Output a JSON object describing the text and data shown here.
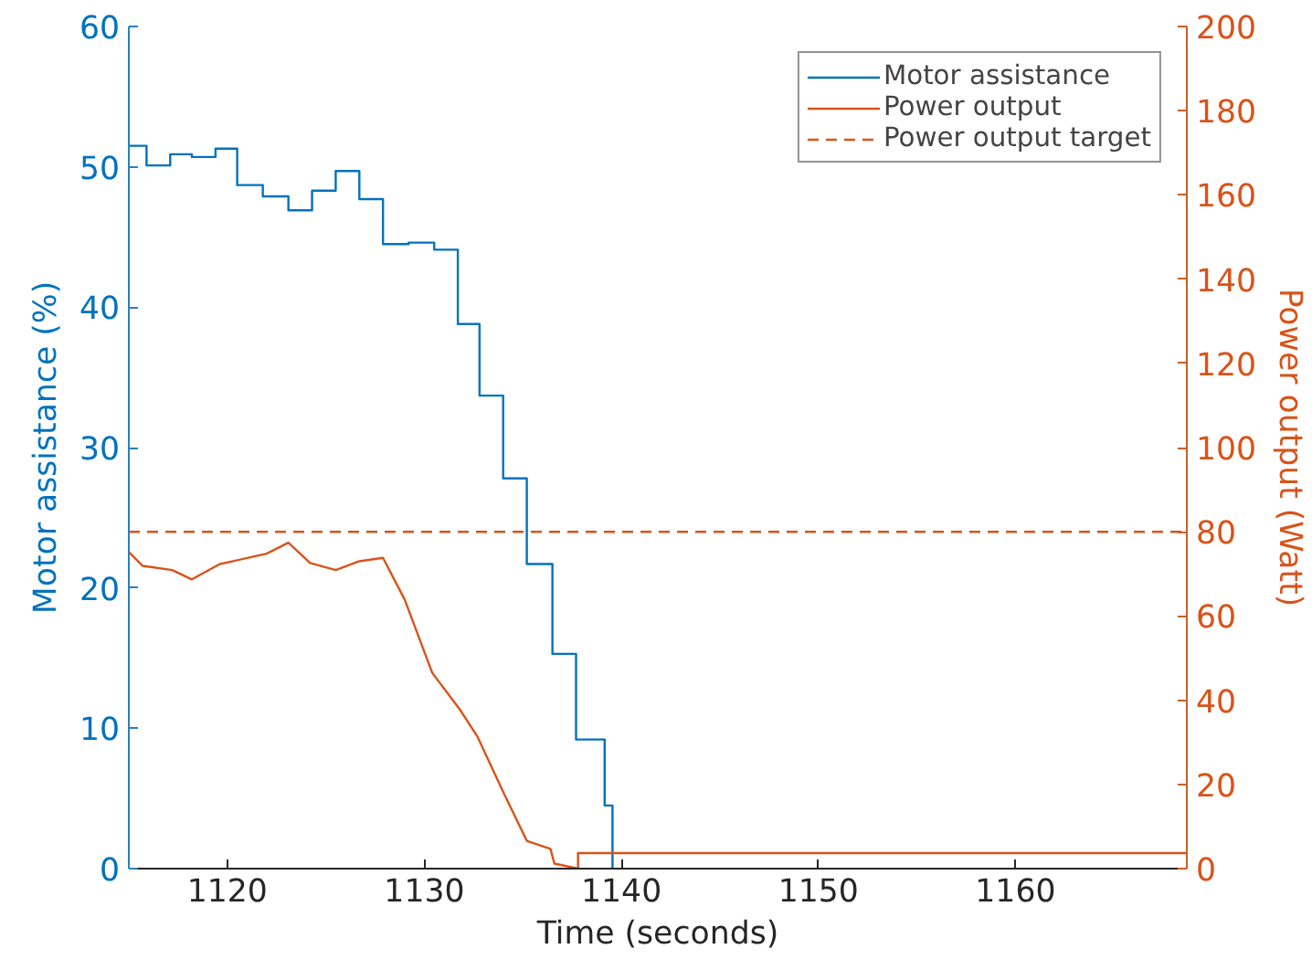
{
  "chart_data": {
    "type": "line",
    "xlabel": "Time (seconds)",
    "ylabel": "Motor assistance (%)",
    "y2label": "Power output (Watt)",
    "xlim": [
      1115,
      1168.7
    ],
    "xticks": [
      1120,
      1130,
      1140,
      1150,
      1160
    ],
    "ylim": [
      0,
      60
    ],
    "yticks": [
      0,
      10,
      20,
      30,
      40,
      50,
      60
    ],
    "y2lim": [
      0,
      200
    ],
    "y2ticks": [
      0,
      20,
      40,
      60,
      80,
      100,
      120,
      140,
      160,
      180,
      200
    ],
    "grid": false,
    "legend": "top right",
    "series": [
      {
        "name": "Motor assistance",
        "type": "step",
        "color": "#0072bd",
        "x": [
          1115,
          1115.9,
          1117.1,
          1118.2,
          1119.4,
          1120.5,
          1121.8,
          1123.1,
          1124.3,
          1125.5,
          1126.7,
          1127.9,
          1129.2,
          1130.5,
          1131.7,
          1132.8,
          1134.0,
          1135.2,
          1136.5,
          1137.7,
          1139.15,
          1139.55
        ],
        "values": [
          51.5,
          50.1,
          50.9,
          50.7,
          51.3,
          48.7,
          47.9,
          46.9,
          48.3,
          49.7,
          47.7,
          44.5,
          44.6,
          44.1,
          38.8,
          33.7,
          27.8,
          21.7,
          15.3,
          9.2,
          4.5,
          0
        ]
      },
      {
        "name": "Power output",
        "axis": "y2",
        "color": "#d95319",
        "x": [
          1115,
          1115.7,
          1117.2,
          1118.2,
          1119.6,
          1122.0,
          1123.1,
          1124.2,
          1125.5,
          1126.7,
          1127.9,
          1129.0,
          1130.4,
          1131.8,
          1132.7,
          1134.0,
          1135.2,
          1136.4,
          1136.6,
          1137.8,
          1137.8,
          1168.7
        ],
        "values": [
          75.2,
          71.9,
          70.9,
          68.7,
          72.3,
          74.8,
          77.4,
          72.6,
          70.9,
          73.0,
          73.8,
          63.9,
          46.5,
          37.8,
          31.3,
          18.2,
          6.6,
          4.7,
          1.2,
          0,
          3.7,
          3.7
        ]
      }
    ],
    "ref_lines": [
      {
        "axis": "y2",
        "value": 80,
        "label": "Power output target",
        "color": "#d95319",
        "line_style": "dashed"
      }
    ]
  }
}
